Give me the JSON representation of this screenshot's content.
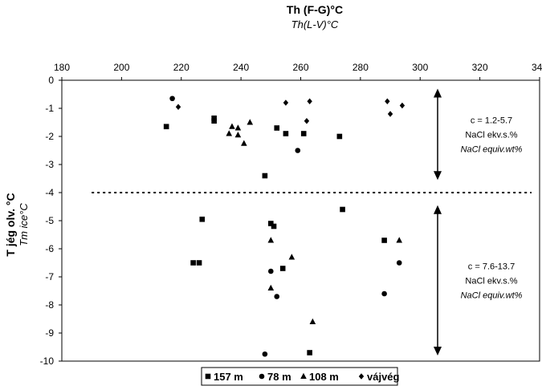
{
  "chart_data": {
    "type": "scatter",
    "title": "Th (F-G)°C",
    "subtitle": "Th(L-V)°C",
    "ylabel": "T jég olv. °C",
    "ylabel_italic": "Tm ice°C",
    "xlim": [
      180,
      340
    ],
    "ylim": [
      -10,
      0
    ],
    "x_axis_position": "top",
    "x_ticks": [
      180,
      200,
      220,
      240,
      260,
      280,
      300,
      320,
      340
    ],
    "y_ticks": [
      0,
      -1,
      -2,
      -3,
      -4,
      -5,
      -6,
      -7,
      -8,
      -9,
      -10
    ],
    "grid": false,
    "legend_position": "bottom",
    "series": [
      {
        "name": "157 m",
        "marker": "square",
        "points": [
          {
            "x": 215,
            "y": -1.65
          },
          {
            "x": 231,
            "y": -1.35
          },
          {
            "x": 231,
            "y": -1.45
          },
          {
            "x": 252,
            "y": -1.7
          },
          {
            "x": 255,
            "y": -1.9
          },
          {
            "x": 261,
            "y": -1.9
          },
          {
            "x": 273,
            "y": -2.0
          },
          {
            "x": 248,
            "y": -3.4
          },
          {
            "x": 227,
            "y": -4.95
          },
          {
            "x": 274,
            "y": -4.6
          },
          {
            "x": 250,
            "y": -5.1
          },
          {
            "x": 251,
            "y": -5.2
          },
          {
            "x": 288,
            "y": -5.7
          },
          {
            "x": 224,
            "y": -6.5
          },
          {
            "x": 226,
            "y": -6.5
          },
          {
            "x": 254,
            "y": -6.7
          },
          {
            "x": 263,
            "y": -9.7
          }
        ]
      },
      {
        "name": "78 m",
        "marker": "circle",
        "points": [
          {
            "x": 217,
            "y": -0.65
          },
          {
            "x": 259,
            "y": -2.5
          },
          {
            "x": 250,
            "y": -6.8
          },
          {
            "x": 252,
            "y": -7.7
          },
          {
            "x": 293,
            "y": -6.5
          },
          {
            "x": 288,
            "y": -7.6
          },
          {
            "x": 248,
            "y": -9.75
          }
        ]
      },
      {
        "name": "108 m",
        "marker": "triangle",
        "points": [
          {
            "x": 236,
            "y": -1.9
          },
          {
            "x": 237,
            "y": -1.65
          },
          {
            "x": 239,
            "y": -1.7
          },
          {
            "x": 239,
            "y": -1.95
          },
          {
            "x": 241,
            "y": -2.25
          },
          {
            "x": 243,
            "y": -1.5
          },
          {
            "x": 250,
            "y": -5.7
          },
          {
            "x": 250,
            "y": -7.4
          },
          {
            "x": 257,
            "y": -6.3
          },
          {
            "x": 293,
            "y": -5.7
          },
          {
            "x": 264,
            "y": -8.6
          }
        ]
      },
      {
        "name": "vájvég",
        "marker": "diamond",
        "points": [
          {
            "x": 219,
            "y": -0.95
          },
          {
            "x": 255,
            "y": -0.8
          },
          {
            "x": 263,
            "y": -0.75
          },
          {
            "x": 262,
            "y": -1.45
          },
          {
            "x": 289,
            "y": -0.75
          },
          {
            "x": 294,
            "y": -0.9
          },
          {
            "x": 290,
            "y": -1.2
          }
        ]
      }
    ],
    "divider_line": {
      "y": -4.0,
      "x_range": [
        190,
        340
      ],
      "style": "dotted"
    },
    "ranges": [
      {
        "y_from": -0.3,
        "y_to": -3.55,
        "label_lines": [
          "c = 1.2-5.7",
          "NaCl ekv.s.%",
          "NaCl equiv.wt%"
        ]
      },
      {
        "y_from": -4.45,
        "y_to": -9.8,
        "label_lines": [
          "c = 7.6-13.7",
          "NaCl ekv.s.%",
          "NaCl equiv.wt%"
        ]
      }
    ],
    "colors": {
      "ink": "#000000",
      "background": "#ffffff"
    }
  }
}
